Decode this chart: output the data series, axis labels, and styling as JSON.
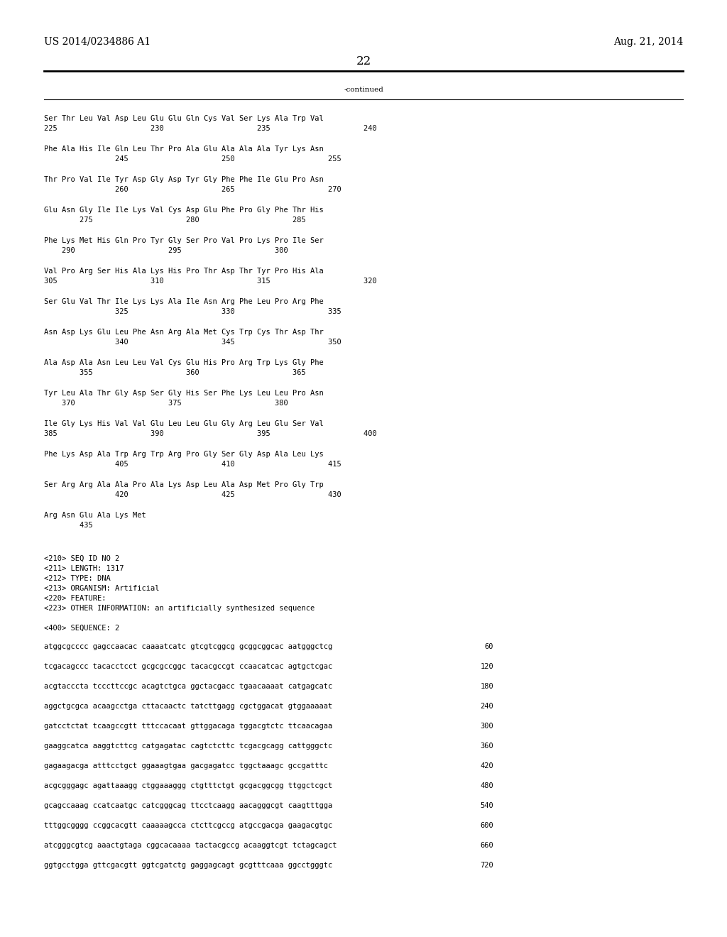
{
  "background_color": "#ffffff",
  "header_left": "US 2014/0234886 A1",
  "header_right": "Aug. 21, 2014",
  "page_number": "22",
  "continued_label": "-continued",
  "font_size_header": 10,
  "font_size_body": 7.5,
  "font_size_page": 12,
  "sequence_blocks": [
    {
      "line1": "Ser Thr Leu Val Asp Leu Glu Glu Gln Cys Val Ser Lys Ala Trp Val",
      "line2": "225                     230                     235                     240"
    },
    {
      "line1": "Phe Ala His Ile Gln Leu Thr Pro Ala Glu Ala Ala Ala Tyr Lys Asn",
      "line2": "                245                     250                     255"
    },
    {
      "line1": "Thr Pro Val Ile Tyr Asp Gly Asp Tyr Gly Phe Phe Ile Glu Pro Asn",
      "line2": "                260                     265                     270"
    },
    {
      "line1": "Glu Asn Gly Ile Ile Lys Val Cys Asp Glu Phe Pro Gly Phe Thr His",
      "line2": "        275                     280                     285"
    },
    {
      "line1": "Phe Lys Met His Gln Pro Tyr Gly Ser Pro Val Pro Lys Pro Ile Ser",
      "line2": "    290                     295                     300"
    },
    {
      "line1": "Val Pro Arg Ser His Ala Lys His Pro Thr Asp Thr Tyr Pro His Ala",
      "line2": "305                     310                     315                     320"
    },
    {
      "line1": "Ser Glu Val Thr Ile Lys Lys Ala Ile Asn Arg Phe Leu Pro Arg Phe",
      "line2": "                325                     330                     335"
    },
    {
      "line1": "Asn Asp Lys Glu Leu Phe Asn Arg Ala Met Cys Trp Cys Thr Asp Thr",
      "line2": "                340                     345                     350"
    },
    {
      "line1": "Ala Asp Ala Asn Leu Leu Val Cys Glu His Pro Arg Trp Lys Gly Phe",
      "line2": "        355                     360                     365"
    },
    {
      "line1": "Tyr Leu Ala Thr Gly Asp Ser Gly His Ser Phe Lys Leu Leu Pro Asn",
      "line2": "    370                     375                     380"
    },
    {
      "line1": "Ile Gly Lys His Val Val Glu Leu Leu Glu Gly Arg Leu Glu Ser Val",
      "line2": "385                     390                     395                     400"
    },
    {
      "line1": "Phe Lys Asp Ala Trp Arg Trp Arg Pro Gly Ser Gly Asp Ala Leu Lys",
      "line2": "                405                     410                     415"
    },
    {
      "line1": "Ser Arg Arg Ala Ala Pro Ala Lys Asp Leu Ala Asp Met Pro Gly Trp",
      "line2": "                420                     425                     430"
    },
    {
      "line1": "Arg Asn Glu Ala Lys Met",
      "line2": "        435"
    }
  ],
  "metadata_lines": [
    "<210> SEQ ID NO 2",
    "<211> LENGTH: 1317",
    "<212> TYPE: DNA",
    "<213> ORGANISM: Artificial",
    "<220> FEATURE:",
    "<223> OTHER INFORMATION: an artificially synthesized sequence"
  ],
  "sequence_label": "<400> SEQUENCE: 2",
  "dna_lines": [
    {
      "seq": "atggcgcccc gagccaacac caaaatcatc gtcgtcggcg gcggcggcac aatgggctcg",
      "num": "60"
    },
    {
      "seq": "tcgacagccc tacacctcct gcgcgccggc tacacgccgt ccaacatcac agtgctcgac",
      "num": "120"
    },
    {
      "seq": "acgtacccta tcccttccgc acagtctgca ggctacgacc tgaacaaaat catgagcatc",
      "num": "180"
    },
    {
      "seq": "aggctgcgca acaagcctga cttacaactc tatcttgagg cgctggacat gtggaaaaat",
      "num": "240"
    },
    {
      "seq": "gatcctctat tcaagccgtt tttccacaat gttggacaga tggacgtctc ttcaacagaa",
      "num": "300"
    },
    {
      "seq": "gaaggcatca aaggtcttcg catgagatac cagtctcttc tcgacgcagg cattgggctc",
      "num": "360"
    },
    {
      "seq": "gagaagacga atttcctgct ggaaagtgaa gacgagatcc tggctaaagc gccgatttc",
      "num": "420"
    },
    {
      "seq": "acgcgggagc agattaaagg ctggaaaggg ctgtttctgt gcgacggcgg ttggctcgct",
      "num": "480"
    },
    {
      "seq": "gcagccaaag ccatcaatgc catcgggcag ttcctcaagg aacagggcgt caagtttgga",
      "num": "540"
    },
    {
      "seq": "tttggcgggg ccggcacgtt caaaaagcca ctcttcgccg atgccgacga gaagacgtgc",
      "num": "600"
    },
    {
      "seq": "atcgggcgtcg aaactgtaga cggcacaaaa tactacgccg acaaggtcgt tctagcagct",
      "num": "660"
    },
    {
      "seq": "ggtgcctgga gttcgacgtt ggtcgatctg gaggagcagt gcgtttcaaa ggcctgggtc",
      "num": "720"
    }
  ]
}
